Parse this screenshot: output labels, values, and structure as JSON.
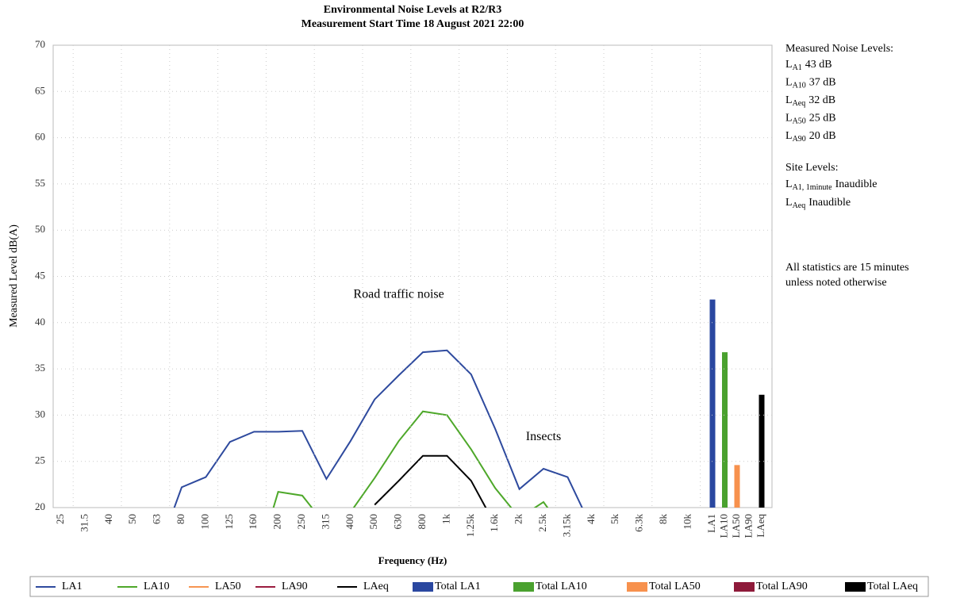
{
  "chart_data": {
    "type": "line",
    "title": "Environmental Noise Levels at R2/R3",
    "subtitle": "Measurement Start Time 18 August 2021 22:00",
    "x_label": "Frequency (Hz)",
    "y_label": "Measured Level dB(A)",
    "categories": [
      "25",
      "31.5",
      "40",
      "50",
      "63",
      "80",
      "100",
      "125",
      "160",
      "200",
      "250",
      "315",
      "400",
      "500",
      "630",
      "800",
      "1k",
      "1.25k",
      "1.6k",
      "2k",
      "2.5k",
      "3.15k",
      "4k",
      "5k",
      "6.3k",
      "8k",
      "10k",
      "LA1",
      "LA10",
      "LA50",
      "LA90",
      "LAeq"
    ],
    "ylim": [
      20,
      70
    ],
    "yticks": [
      20,
      25,
      30,
      35,
      40,
      45,
      50,
      55,
      60,
      65,
      70
    ],
    "grid": true,
    "legend": "bottom",
    "series": [
      {
        "name": "LA1",
        "type": "line",
        "color": "#2e4a9e",
        "values": [
          null,
          null,
          null,
          null,
          15,
          22.2,
          23.3,
          27.1,
          28.2,
          28.2,
          28.3,
          23.1,
          27.2,
          31.7,
          34.3,
          36.8,
          37.0,
          34.4,
          28.5,
          22.0,
          24.2,
          23.3,
          17.8,
          null,
          null,
          null,
          null,
          null,
          null,
          null,
          null,
          null
        ]
      },
      {
        "name": "LA10",
        "type": "line",
        "color": "#4ea82a",
        "values": [
          null,
          null,
          null,
          null,
          null,
          null,
          null,
          null,
          13,
          21.7,
          21.3,
          18,
          19.5,
          23.2,
          27.2,
          30.4,
          30.0,
          26.3,
          22.1,
          18.9,
          20.6,
          17,
          null,
          null,
          null,
          null,
          null,
          null,
          null,
          null,
          null,
          null
        ]
      },
      {
        "name": "LA50",
        "type": "line",
        "color": "#f79552",
        "values": [
          null,
          null,
          null,
          null,
          null,
          null,
          null,
          null,
          null,
          null,
          null,
          null,
          null,
          null,
          null,
          null,
          null,
          null,
          null,
          null,
          null,
          null,
          null,
          null,
          null,
          null,
          null,
          null,
          null,
          null,
          null,
          null
        ]
      },
      {
        "name": "LA90",
        "type": "line",
        "color": "#9b1c3f",
        "values": [
          null,
          null,
          null,
          null,
          null,
          null,
          null,
          null,
          null,
          null,
          null,
          null,
          null,
          null,
          null,
          null,
          null,
          null,
          null,
          null,
          null,
          null,
          null,
          null,
          null,
          null,
          null,
          null,
          null,
          null,
          null,
          null
        ]
      },
      {
        "name": "LAeq",
        "type": "line",
        "color": "#000000",
        "values": [
          null,
          null,
          null,
          null,
          null,
          null,
          null,
          null,
          null,
          null,
          null,
          null,
          null,
          20.3,
          22.9,
          25.6,
          25.6,
          22.9,
          18.1,
          null,
          null,
          null,
          null,
          null,
          null,
          null,
          null,
          null,
          null,
          null,
          null,
          null
        ]
      },
      {
        "name": "Total LA1",
        "type": "bar",
        "color": "#2a47a0",
        "values": [
          null,
          null,
          null,
          null,
          null,
          null,
          null,
          null,
          null,
          null,
          null,
          null,
          null,
          null,
          null,
          null,
          null,
          null,
          null,
          null,
          null,
          null,
          null,
          null,
          null,
          null,
          null,
          42.5,
          null,
          null,
          null,
          null
        ]
      },
      {
        "name": "Total LA10",
        "type": "bar",
        "color": "#4aa12f",
        "values": [
          null,
          null,
          null,
          null,
          null,
          null,
          null,
          null,
          null,
          null,
          null,
          null,
          null,
          null,
          null,
          null,
          null,
          null,
          null,
          null,
          null,
          null,
          null,
          null,
          null,
          null,
          null,
          null,
          36.8,
          null,
          null,
          null
        ]
      },
      {
        "name": "Total LA50",
        "type": "bar",
        "color": "#f7914d",
        "values": [
          null,
          null,
          null,
          null,
          null,
          null,
          null,
          null,
          null,
          null,
          null,
          null,
          null,
          null,
          null,
          null,
          null,
          null,
          null,
          null,
          null,
          null,
          null,
          null,
          null,
          null,
          null,
          null,
          null,
          24.6,
          null,
          null
        ]
      },
      {
        "name": "Total LA90",
        "type": "bar",
        "color": "#8e1a3a",
        "values": [
          null,
          null,
          null,
          null,
          null,
          null,
          null,
          null,
          null,
          null,
          null,
          null,
          null,
          null,
          null,
          null,
          null,
          null,
          null,
          null,
          null,
          null,
          null,
          null,
          null,
          null,
          null,
          null,
          null,
          null,
          null,
          null
        ]
      },
      {
        "name": "Total LAeq",
        "type": "bar",
        "color": "#000000",
        "values": [
          null,
          null,
          null,
          null,
          null,
          null,
          null,
          null,
          null,
          null,
          null,
          null,
          null,
          null,
          null,
          null,
          null,
          null,
          null,
          null,
          null,
          null,
          null,
          null,
          null,
          null,
          null,
          null,
          null,
          null,
          null,
          32.2
        ]
      }
    ],
    "annotations": [
      {
        "text": "Road traffic noise",
        "category": "630",
        "y": 43
      },
      {
        "text": "Insects",
        "category": "2.5k",
        "y": 27.6
      }
    ],
    "side_panel": {
      "measured_heading": "Measured Noise Levels:",
      "measured": [
        {
          "symbol": "L",
          "subscript": "A1",
          "text": "43 dB"
        },
        {
          "symbol": "L",
          "subscript": "A10",
          "text": "37 dB"
        },
        {
          "symbol": "L",
          "subscript": "Aeq",
          "text": "32 dB"
        },
        {
          "symbol": "L",
          "subscript": "A50",
          "text": "25 dB"
        },
        {
          "symbol": "L",
          "subscript": "A90",
          "text": "20 dB"
        }
      ],
      "site_heading": "Site Levels:",
      "site": [
        {
          "symbol": "L",
          "subscript": "A1, 1minute",
          "text": "Inaudible"
        },
        {
          "symbol": "L",
          "subscript": "Aeq",
          "text": "Inaudible"
        }
      ],
      "note": [
        "All statistics are 15 minutes",
        "unless noted otherwise"
      ]
    }
  }
}
